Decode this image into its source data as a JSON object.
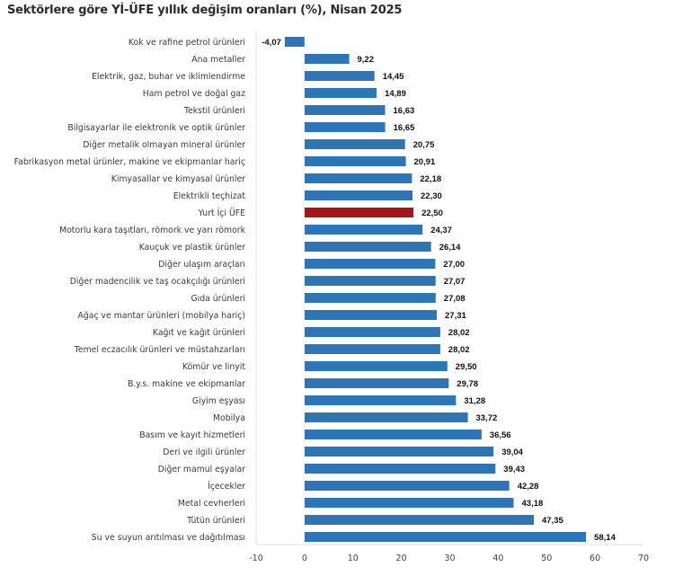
{
  "chart_data": {
    "type": "bar",
    "orientation": "horizontal",
    "title": "Sektörlere göre Yİ-ÜFE yıllık değişim oranları (%), Nisan 2025",
    "xlabel": "",
    "ylabel": "",
    "xlim": [
      -10,
      70
    ],
    "xticks": [
      -10,
      0,
      10,
      20,
      30,
      40,
      50,
      60,
      70
    ],
    "xtick_labels": [
      "-10",
      "0",
      "10",
      "20",
      "30",
      "40",
      "50",
      "60",
      "70"
    ],
    "grid": false,
    "legend": "none",
    "colors": {
      "default": "#2e75b6",
      "highlight": "#a5161b",
      "axis": "#e6e6e6"
    },
    "categories": [
      "Kok ve rafine petrol ürünleri",
      "Ana metaller",
      "Elektrik, gaz, buhar ve iklimlendirme",
      "Ham petrol ve doğal gaz",
      "Tekstil ürünleri",
      "Bilgisayarlar ile elektronik ve optik ürünler",
      "Diğer metalik olmayan mineral ürünler",
      "Fabrikasyon metal ürünler, makine ve ekipmanlar hariç",
      "Kimyasallar ve kimyasal ürünler",
      "Elektrikli teçhizat",
      "Yurt İçi ÜFE",
      "Motorlu kara taşıtları, römork ve yarı römork",
      "Kauçuk ve plastik ürünler",
      "Diğer ulaşım araçları",
      "Diğer madencilik ve taş ocakçılığı ürünleri",
      "Gıda ürünleri",
      "Ağaç ve mantar ürünleri (mobilya hariç)",
      "Kağıt ve kağıt ürünleri",
      "Temel eczacılık ürünleri ve müstahzarları",
      "Kömür ve linyit",
      "B.y.s. makine ve ekipmanlar",
      "Giyim eşyası",
      "Mobilya",
      "Basım ve kayıt hizmetleri",
      "Deri ve ilgili ürünler",
      "Diğer mamul eşyalar",
      "İçecekler",
      "Metal cevherleri",
      "Tütün ürünleri",
      "Su ve suyun arıtılması ve dağıtılması"
    ],
    "values": [
      -4.07,
      9.22,
      14.45,
      14.89,
      16.63,
      16.65,
      20.75,
      20.91,
      22.18,
      22.3,
      22.5,
      24.37,
      26.14,
      27.0,
      27.07,
      27.08,
      27.31,
      28.02,
      28.02,
      29.5,
      29.78,
      31.28,
      33.72,
      36.56,
      39.04,
      39.43,
      42.28,
      43.18,
      47.35,
      58.14
    ],
    "value_labels": [
      "-4,07",
      "9,22",
      "14,45",
      "14,89",
      "16,63",
      "16,65",
      "20,75",
      "20,91",
      "22,18",
      "22,30",
      "22,50",
      "24,37",
      "26,14",
      "27,00",
      "27,07",
      "27,08",
      "27,31",
      "28,02",
      "28,02",
      "29,50",
      "29,78",
      "31,28",
      "33,72",
      "36,56",
      "39,04",
      "39,43",
      "42,28",
      "43,18",
      "47,35",
      "58,14"
    ],
    "highlight_category": "Yurt İçi ÜFE"
  }
}
